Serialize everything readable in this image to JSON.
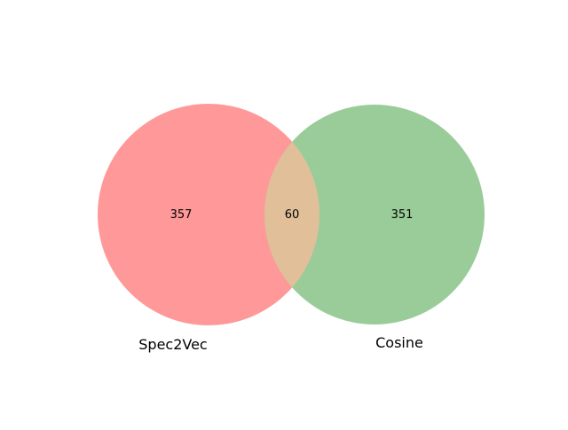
{
  "chart_data": {
    "type": "venn",
    "sets": [
      {
        "name": "Spec2Vec",
        "only": 357,
        "color": "#ff9999"
      },
      {
        "name": "Cosine",
        "only": 351,
        "color": "#99cc99"
      }
    ],
    "intersection": {
      "value": 60,
      "color": "#e0bf99"
    },
    "labels": {
      "left_only": "357",
      "overlap": "60",
      "right_only": "351",
      "left_set": "Spec2Vec",
      "right_set": "Cosine"
    }
  }
}
